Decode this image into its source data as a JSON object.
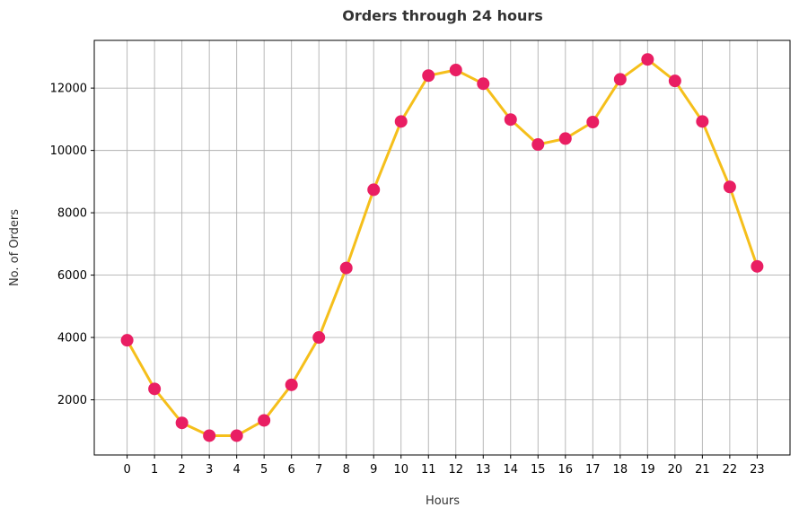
{
  "chart_data": {
    "type": "line",
    "title": "Orders through 24 hours",
    "xlabel": "Hours",
    "ylabel": "No. of Orders",
    "x": [
      0,
      1,
      2,
      3,
      4,
      5,
      6,
      7,
      8,
      9,
      10,
      11,
      12,
      13,
      14,
      15,
      16,
      17,
      18,
      19,
      20,
      21,
      22,
      23
    ],
    "x_ticks": [
      "0",
      "1",
      "2",
      "3",
      "4",
      "5",
      "6",
      "7",
      "8",
      "9",
      "10",
      "11",
      "12",
      "13",
      "14",
      "15",
      "16",
      "17",
      "18",
      "19",
      "20",
      "21",
      "22",
      "23"
    ],
    "y_ticks": [
      2000,
      4000,
      6000,
      8000,
      10000,
      12000
    ],
    "y_tick_labels": [
      "2000",
      "4000",
      "6000",
      "8000",
      "10000",
      "12000"
    ],
    "xlim": [
      -1.2,
      24.2
    ],
    "ylim": [
      230,
      13530
    ],
    "grid": true,
    "series": [
      {
        "values": [
          3910,
          2350,
          1260,
          850,
          850,
          1340,
          2480,
          4000,
          6230,
          8740,
          10930,
          12400,
          12580,
          12140,
          10990,
          10190,
          10380,
          10910,
          12280,
          12920,
          12230,
          10930,
          8830,
          6280
        ],
        "line_color": "#f5bf1b",
        "marker_color": "#e91e63"
      }
    ]
  }
}
